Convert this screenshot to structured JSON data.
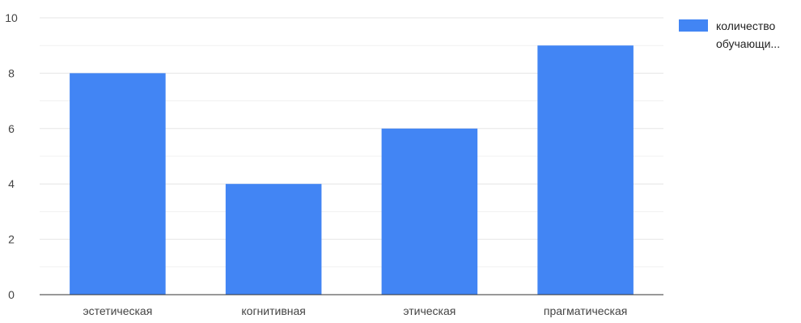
{
  "chart_data": {
    "type": "bar",
    "categories": [
      "эстетическая",
      "когнитивная",
      "этическая",
      "прагматическая"
    ],
    "series": [
      {
        "name": "количество обучающи...",
        "values": [
          8,
          4,
          6,
          9
        ],
        "color": "#4285f4"
      }
    ],
    "yticks": [
      "0",
      "2",
      "4",
      "6",
      "8",
      "10"
    ],
    "ylim": [
      0,
      10
    ],
    "grid": true,
    "minor_grid": true,
    "legend_position": "right",
    "legend_lines": [
      "количество",
      "обучающи..."
    ],
    "colors": {
      "bar": "#4285f4",
      "grid": "#e6e6e6",
      "axis": "#333333"
    }
  }
}
